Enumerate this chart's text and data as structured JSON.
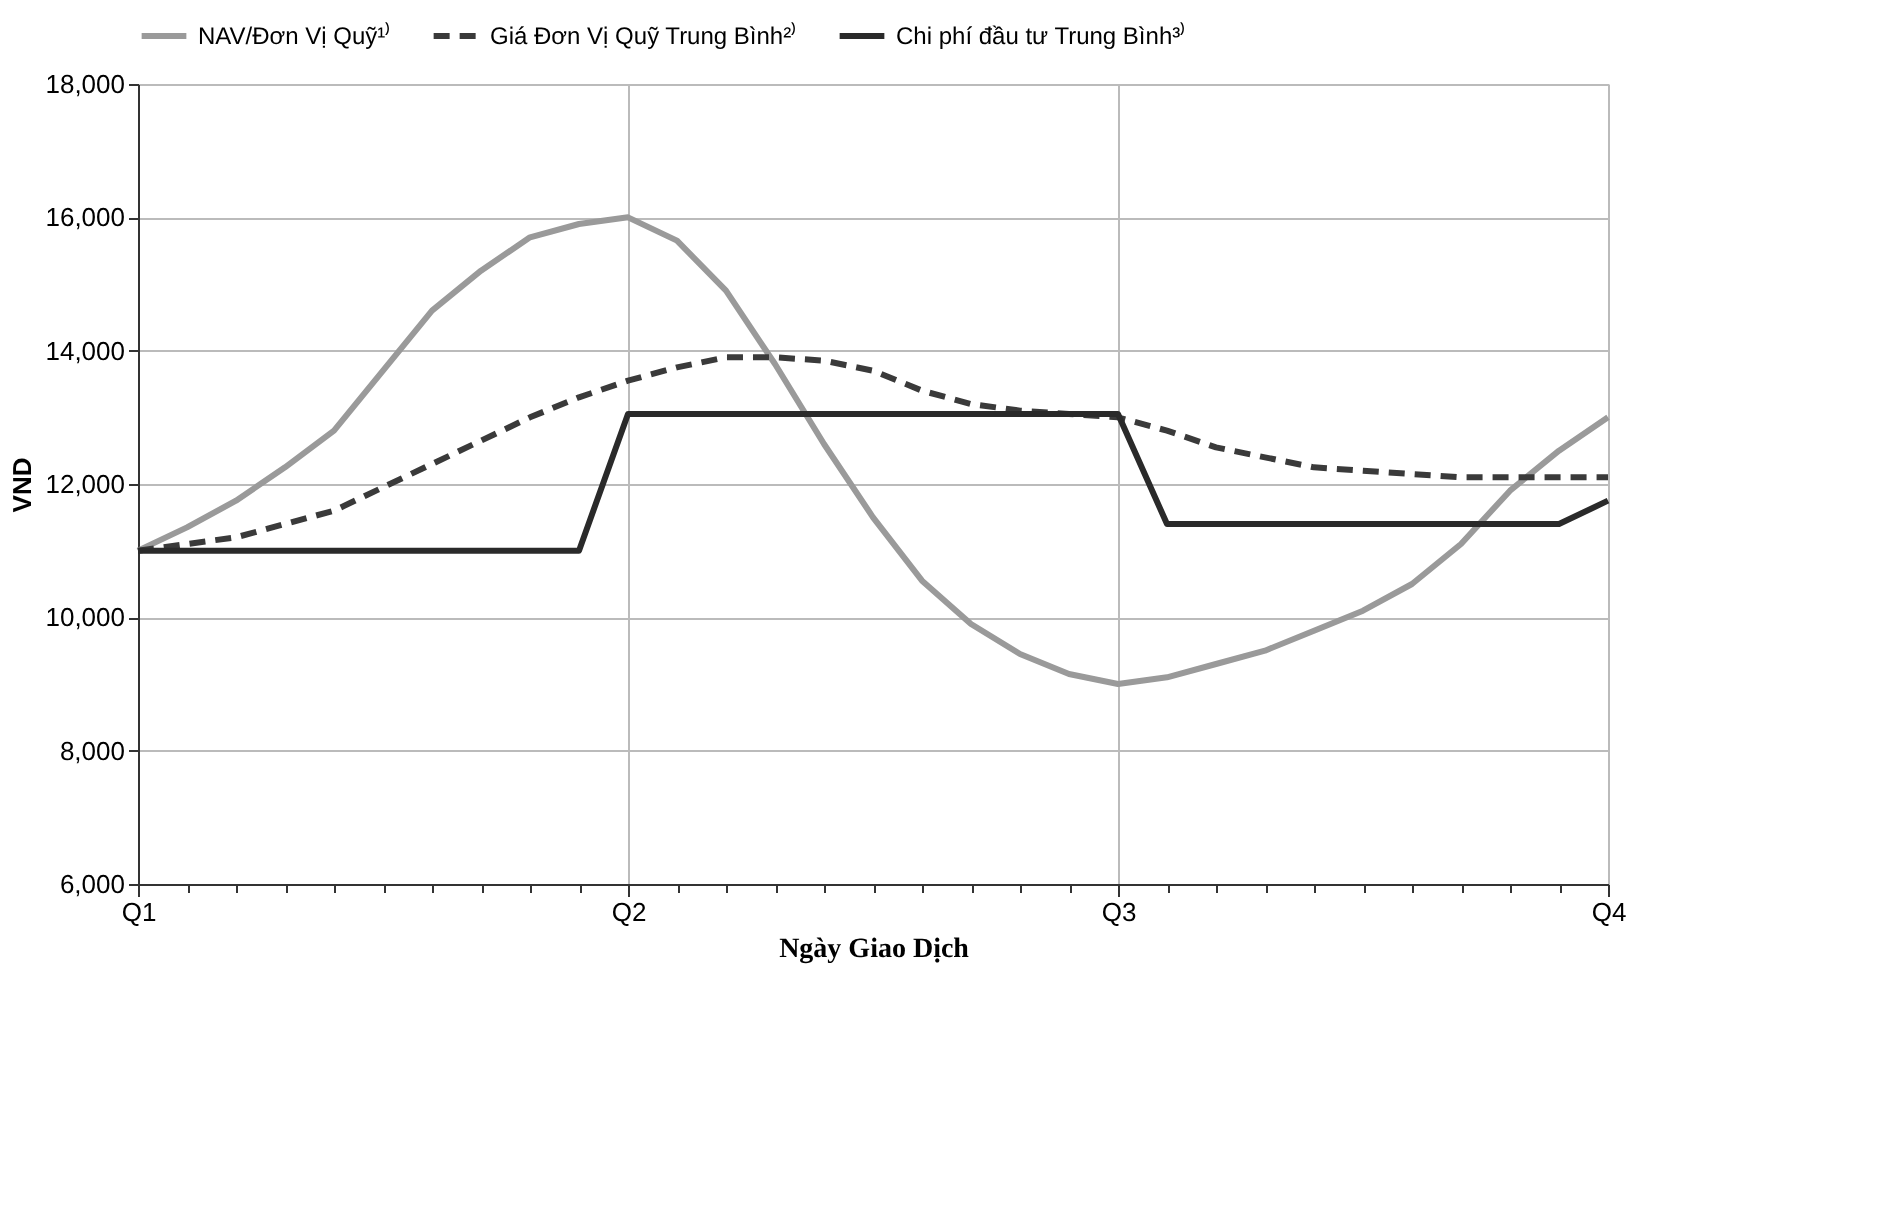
{
  "chart_data": {
    "type": "line",
    "xlabel": "Ngày Giao Dịch",
    "ylabel": "VND",
    "categories": [
      "Q1",
      null,
      null,
      null,
      null,
      null,
      null,
      null,
      null,
      null,
      "Q2",
      null,
      null,
      null,
      null,
      null,
      null,
      null,
      null,
      null,
      "Q3",
      null,
      null,
      null,
      null,
      null,
      null,
      null,
      null,
      null,
      "Q4"
    ],
    "ylim": [
      6000,
      18000
    ],
    "yticks": [
      {
        "value": 6000,
        "label": "6,000"
      },
      {
        "value": 8000,
        "label": "8,000"
      },
      {
        "value": 10000,
        "label": "10,000"
      },
      {
        "value": 12000,
        "label": "12,000"
      },
      {
        "value": 14000,
        "label": "14,000"
      },
      {
        "value": 16000,
        "label": "16,000"
      },
      {
        "value": 18000,
        "label": "18,000"
      }
    ],
    "grid": true,
    "legend": "top",
    "marker": "none",
    "series": [
      {
        "name": "NAV/Đơn Vị Quỹ¹⁾",
        "color": "#9a9a9a",
        "line_style": "solid",
        "values": [
          11000,
          11350,
          11750,
          12250,
          12800,
          13700,
          14600,
          15200,
          15700,
          15900,
          16000,
          15650,
          14900,
          13800,
          12600,
          11500,
          10550,
          9900,
          9450,
          9150,
          9000,
          9100,
          9300,
          9500,
          9800,
          10100,
          10500,
          11100,
          11900,
          12500,
          13000
        ]
      },
      {
        "name": "Giá Đơn Vị Quỹ Trung Bình²⁾",
        "color": "#3a3a3a",
        "line_style": "dashed",
        "values": [
          11000,
          11100,
          11200,
          11400,
          11600,
          11950,
          12300,
          12650,
          13000,
          13300,
          13550,
          13750,
          13900,
          13900,
          13850,
          13700,
          13400,
          13200,
          13100,
          13050,
          13000,
          12800,
          12550,
          12400,
          12250,
          12200,
          12150,
          12100,
          12100,
          12100,
          12100
        ]
      },
      {
        "name": "Chi phí đầu tư Trung Bình³⁾",
        "color": "#2a2a2a",
        "line_style": "solid",
        "values": [
          11000,
          11000,
          11000,
          11000,
          11000,
          11000,
          11000,
          11000,
          11000,
          11000,
          13050,
          13050,
          13050,
          13050,
          13050,
          13050,
          13050,
          13050,
          13050,
          13050,
          13050,
          11400,
          11400,
          11400,
          11400,
          11400,
          11400,
          11400,
          11400,
          11400,
          11750
        ]
      }
    ]
  }
}
